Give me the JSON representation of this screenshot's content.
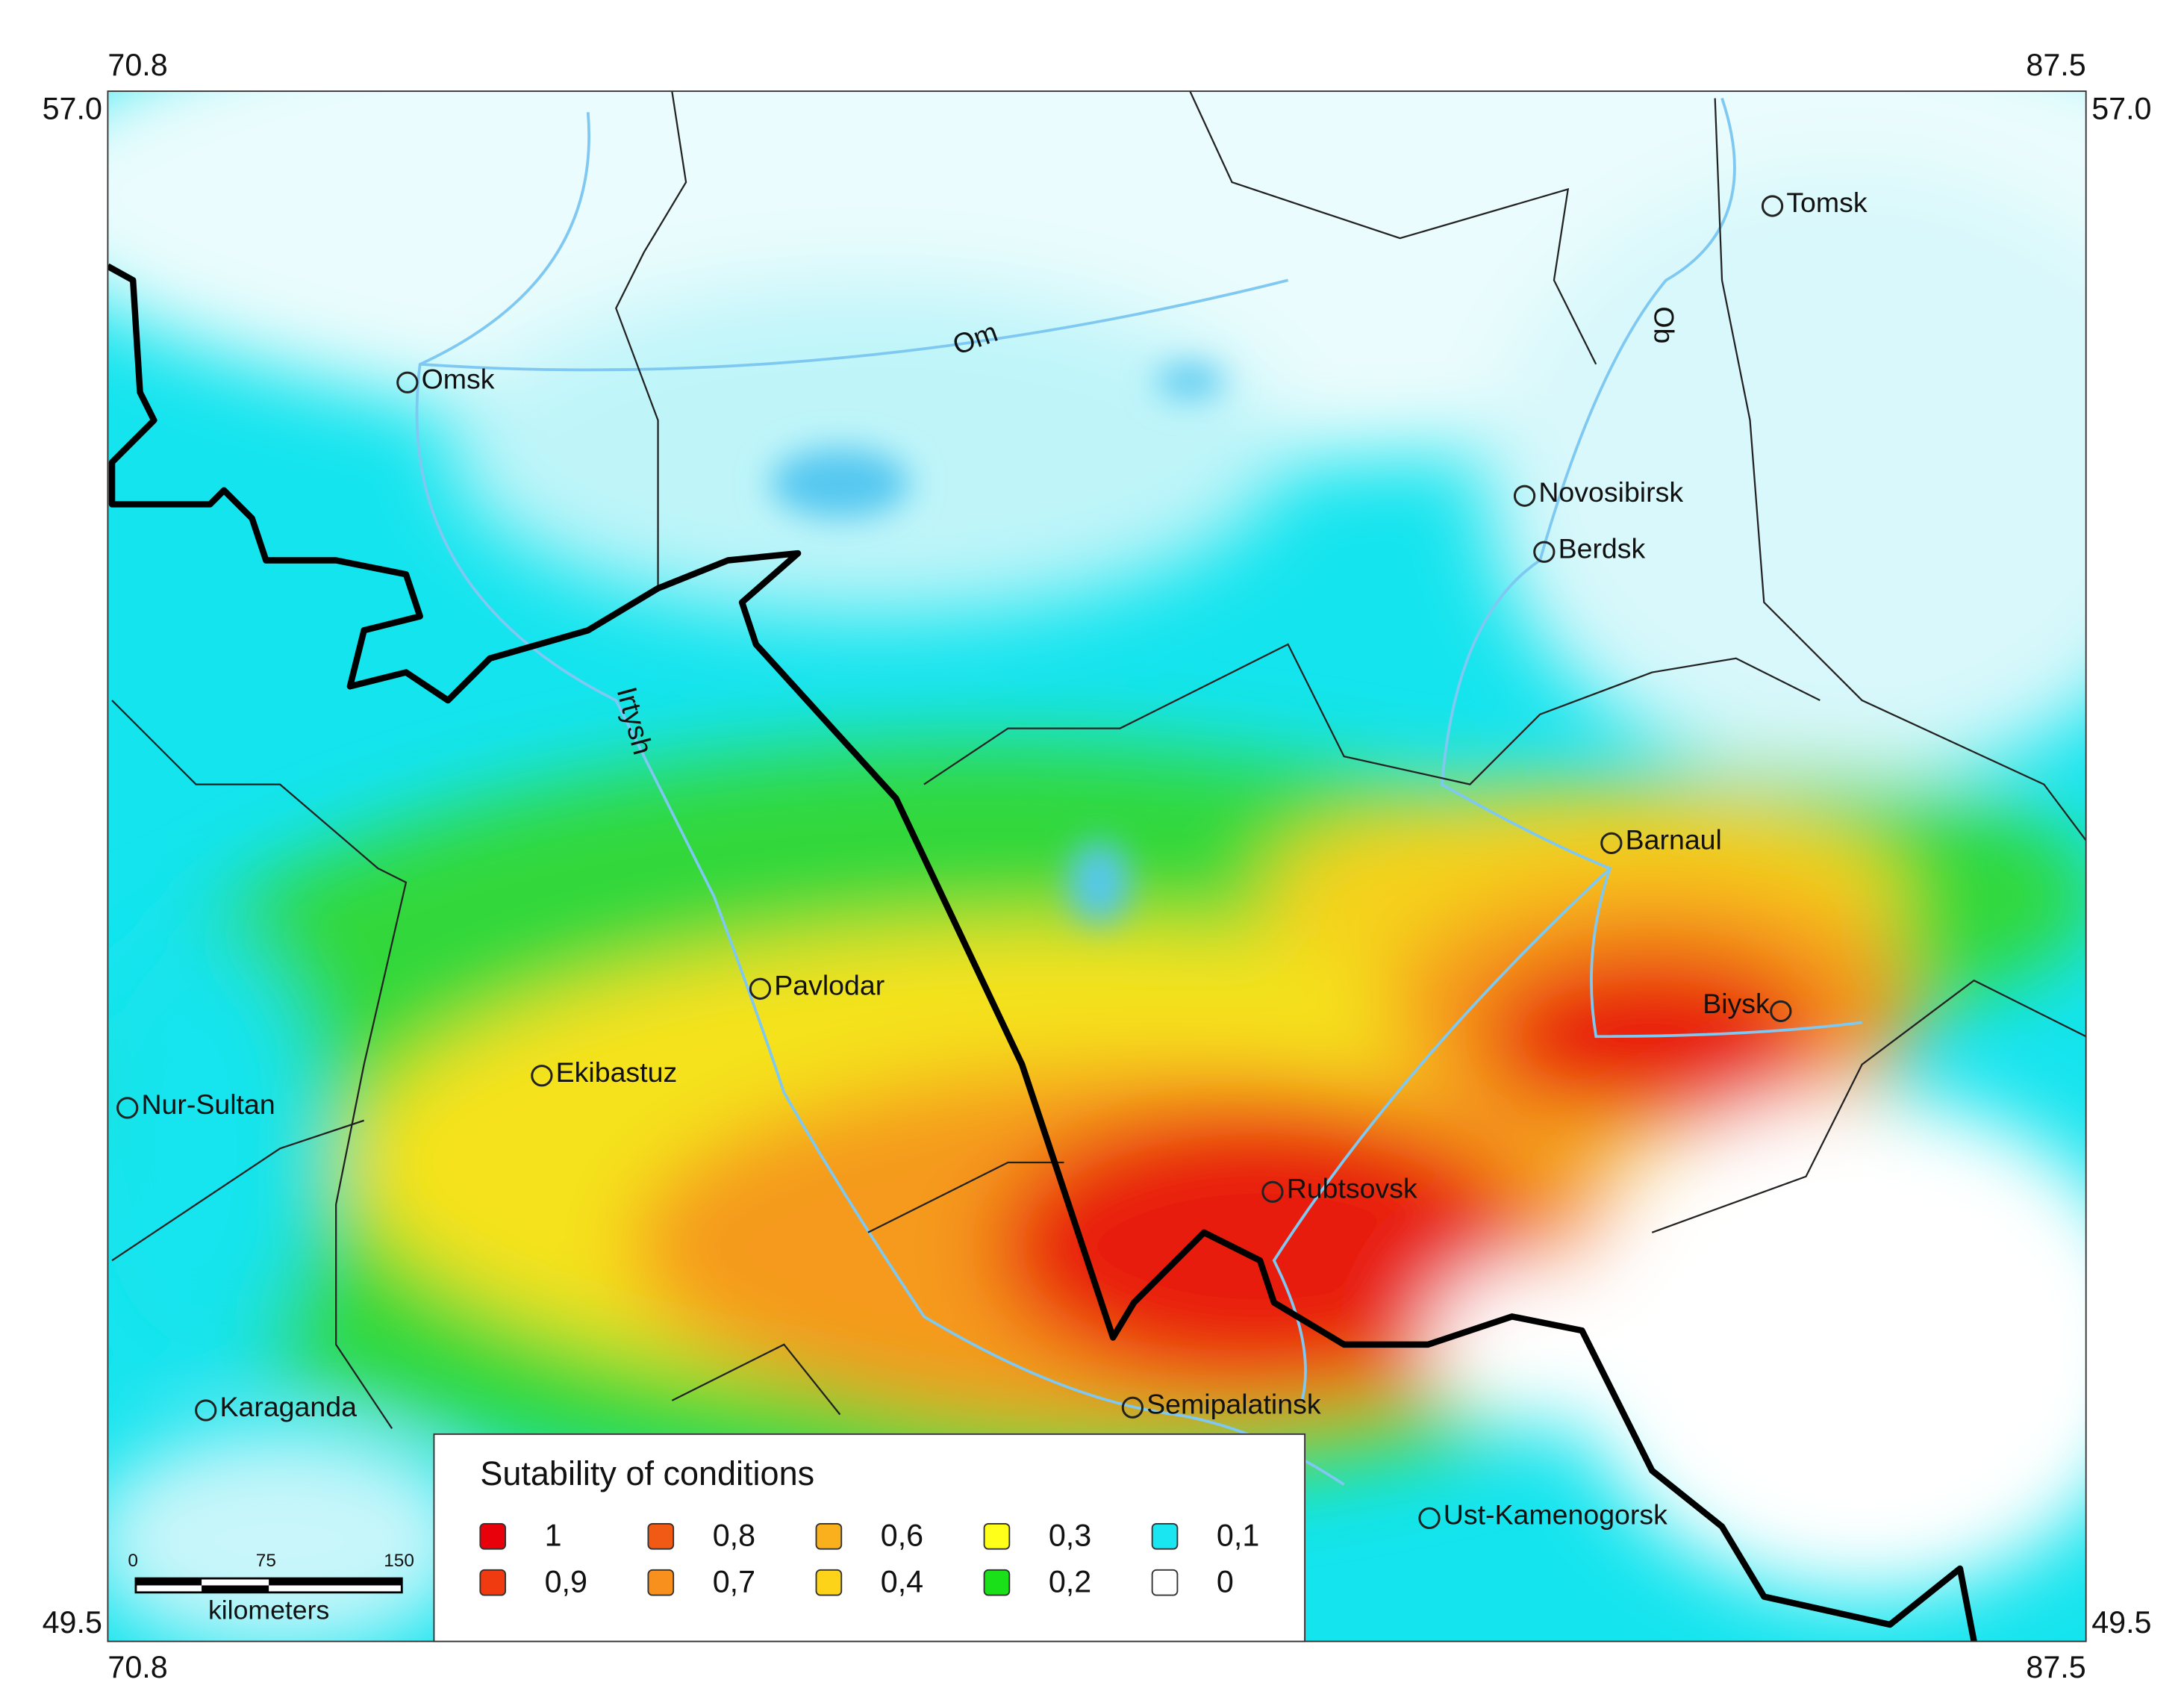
{
  "map": {
    "frame_labels": {
      "top_left_lon": "70.8",
      "top_right_lon": "87.5",
      "bottom_left_lon": "70.8",
      "bottom_right_lon": "87.5",
      "left_top_lat": "57.0",
      "right_top_lat": "57.0",
      "left_bottom_lat": "49.5",
      "right_bottom_lat": "49.5"
    },
    "cities": [
      "Tomsk",
      "Omsk",
      "Novosibirsk",
      "Berdsk",
      "Barnaul",
      "Pavlodar",
      "Biysk",
      "Ekibastuz",
      "Nur-Sultan",
      "Rubtsovsk",
      "Semipalatinsk",
      "Karaganda",
      "Ust-Kamenogorsk"
    ],
    "rivers": [
      "Om",
      "Irtysh",
      "Ob"
    ],
    "legend": {
      "title": "Sutability of conditions",
      "items": [
        {
          "label": "1",
          "color": "#e8000b"
        },
        {
          "label": "0,9",
          "color": "#f03a10"
        },
        {
          "label": "0,8",
          "color": "#f05a14"
        },
        {
          "label": "0,7",
          "color": "#f7901c"
        },
        {
          "label": "0,6",
          "color": "#f9b01c"
        },
        {
          "label": "0,4",
          "color": "#fdd31a"
        },
        {
          "label": "0,3",
          "color": "#ffff1a"
        },
        {
          "label": "0,2",
          "color": "#19e019"
        },
        {
          "label": "0,1",
          "color": "#19e6f0"
        },
        {
          "label": "0",
          "color": "#ffffff"
        }
      ]
    },
    "scale_bar": {
      "ticks": [
        "0",
        "75",
        "150"
      ],
      "unit": "kilometers"
    }
  }
}
